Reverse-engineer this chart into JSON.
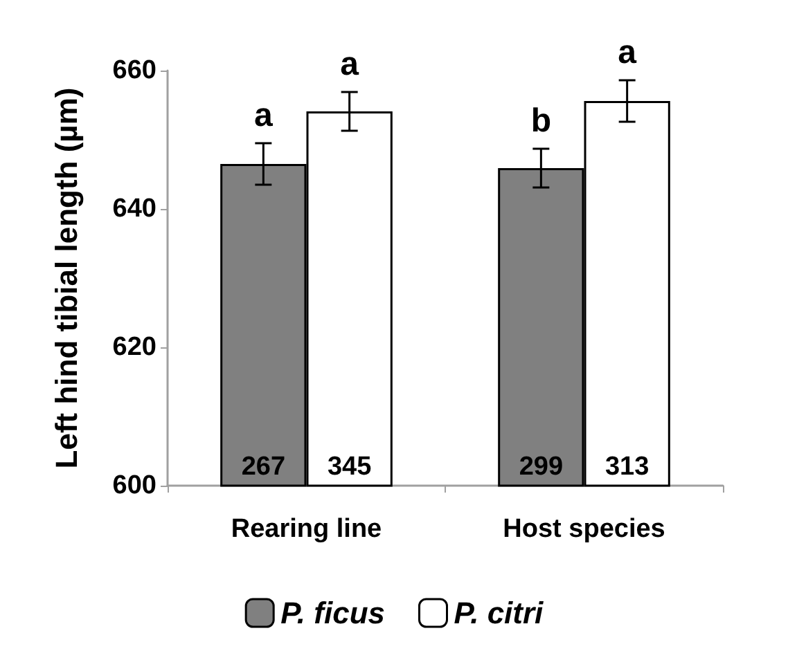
{
  "chart_data": {
    "type": "bar",
    "ylabel": "Left hind tibial length (µm)",
    "categories": [
      "Rearing line",
      "Host species"
    ],
    "series": [
      {
        "name": "P. ficus",
        "color": "#808080",
        "values": [
          646.5,
          645.9
        ],
        "errors": [
          3.0,
          2.8
        ]
      },
      {
        "name": "P. citri",
        "color": "#ffffff",
        "values": [
          654.1,
          655.6
        ],
        "errors": [
          2.8,
          3.0
        ]
      }
    ],
    "annotations": [
      "a",
      "a",
      "b",
      "a",
      "267",
      "345",
      "299",
      "313"
    ],
    "ylim": [
      600,
      660
    ],
    "yticks": [
      600,
      620,
      640,
      660
    ],
    "grid": false,
    "legend": "bottom"
  }
}
